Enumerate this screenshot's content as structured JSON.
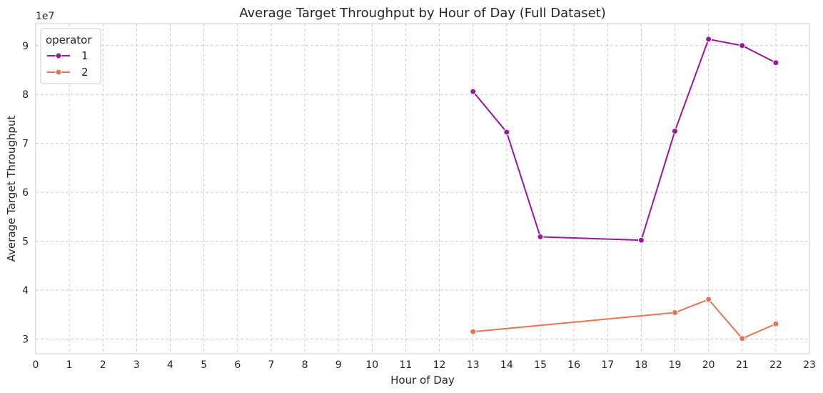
{
  "chart_data": {
    "type": "line",
    "title": "Average Target Throughput by Hour of Day (Full Dataset)",
    "xlabel": "Hour of Day",
    "ylabel": "Average Target Throughput",
    "y_offset_label": "1e7",
    "xlim": [
      0,
      23
    ],
    "ylim": [
      2.7,
      9.45
    ],
    "x_ticks": [
      0,
      1,
      2,
      3,
      4,
      5,
      6,
      7,
      8,
      9,
      10,
      11,
      12,
      13,
      14,
      15,
      16,
      17,
      18,
      19,
      20,
      21,
      22,
      23
    ],
    "y_ticks": [
      3,
      4,
      5,
      6,
      7,
      8,
      9
    ],
    "grid": true,
    "legend": {
      "title": "operator",
      "position": "top-left"
    },
    "series": [
      {
        "name": "1",
        "color": "#9a179b",
        "x": [
          13,
          14,
          15,
          18,
          19,
          20,
          21,
          22
        ],
        "y": [
          8.06,
          7.23,
          5.09,
          5.02,
          7.25,
          9.13,
          9.0,
          8.65
        ]
      },
      {
        "name": "2",
        "color": "#e8744f",
        "x": [
          13,
          19,
          20,
          21,
          22
        ],
        "y": [
          3.15,
          3.54,
          3.81,
          3.01,
          3.31
        ]
      }
    ]
  }
}
